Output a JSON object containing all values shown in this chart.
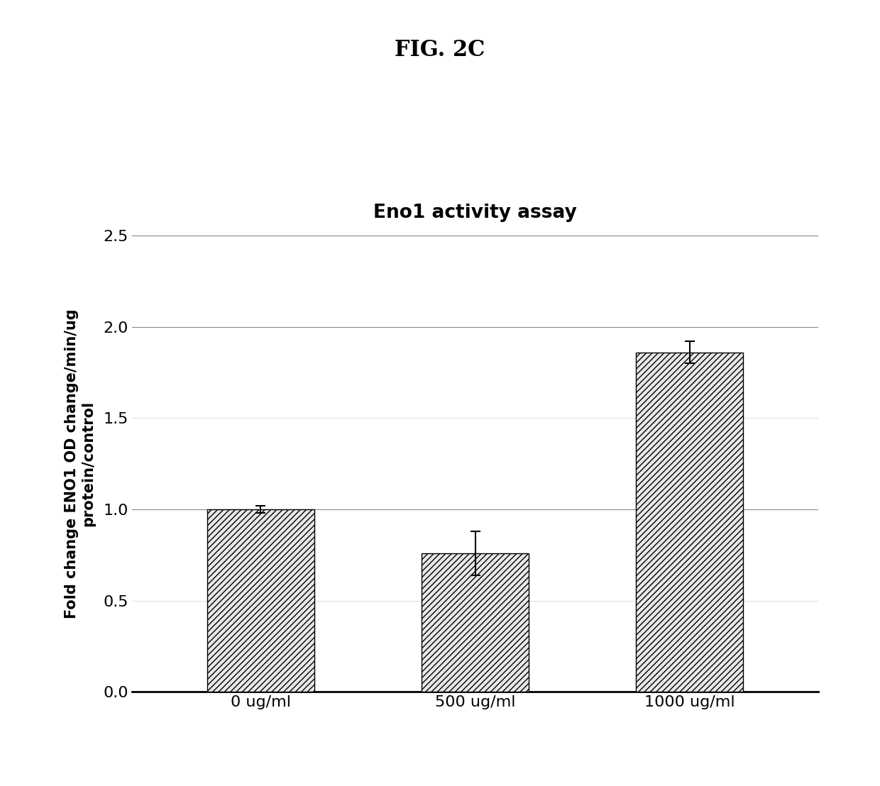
{
  "fig_title": "FIG. 2C",
  "chart_title": "Eno1 activity assay",
  "categories": [
    "0 ug/ml",
    "500 ug/ml",
    "1000 ug/ml"
  ],
  "values": [
    1.0,
    0.76,
    1.86
  ],
  "errors": [
    0.02,
    0.12,
    0.06
  ],
  "ylabel": "Fold change ENO1 OD change/min/ug\nprotein/control",
  "ylim": [
    0,
    2.5
  ],
  "yticks": [
    0.0,
    0.5,
    1.0,
    1.5,
    2.0,
    2.5
  ],
  "ytick_labels": [
    "0.0",
    "0.5",
    "1.0",
    "1.5",
    "2.0",
    "2.5"
  ],
  "solid_gridlines": [
    1.0,
    2.0,
    2.5
  ],
  "dotted_gridlines": [
    0.5,
    1.5
  ],
  "bar_facecolor": "#e8e8e8",
  "bar_edge_color": "#000000",
  "hatch_pattern": "////",
  "background_color": "#ffffff",
  "bar_width": 0.5
}
